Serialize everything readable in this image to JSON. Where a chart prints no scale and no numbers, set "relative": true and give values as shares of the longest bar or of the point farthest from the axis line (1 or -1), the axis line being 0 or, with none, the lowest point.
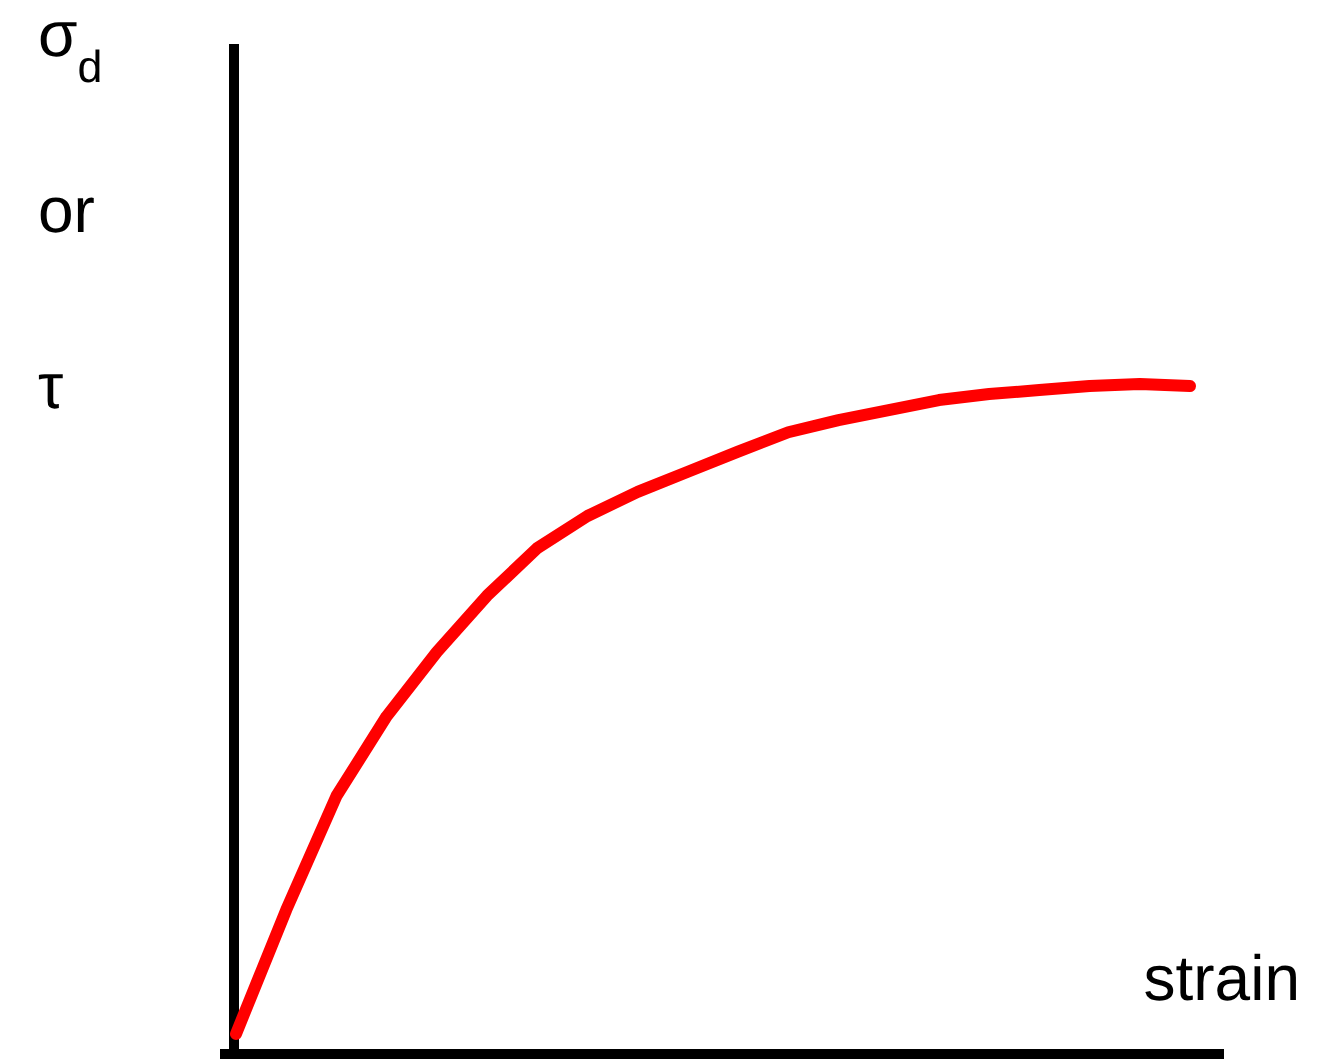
{
  "chart_data": {
    "type": "line",
    "relative": true,
    "xlabel": "strain",
    "ylabel": "σ$_{d}$ or τ",
    "categories": [
      null,
      null,
      null,
      null,
      null,
      null,
      null,
      null,
      null,
      null,
      null,
      null,
      null,
      null,
      null,
      null,
      null,
      null,
      null,
      null
    ],
    "series": [
      {
        "color": "#ff0000",
        "values": [
          0.03,
          0.215,
          0.385,
          0.504,
          0.6,
          0.684,
          0.755,
          0.803,
          0.839,
          0.869,
          0.899,
          0.928,
          0.946,
          0.961,
          0.976,
          0.985,
          0.991,
          0.997,
          1,
          0.997
        ]
      }
    ],
    "grid": false,
    "marker": "none",
    "line_style": "solid"
  }
}
